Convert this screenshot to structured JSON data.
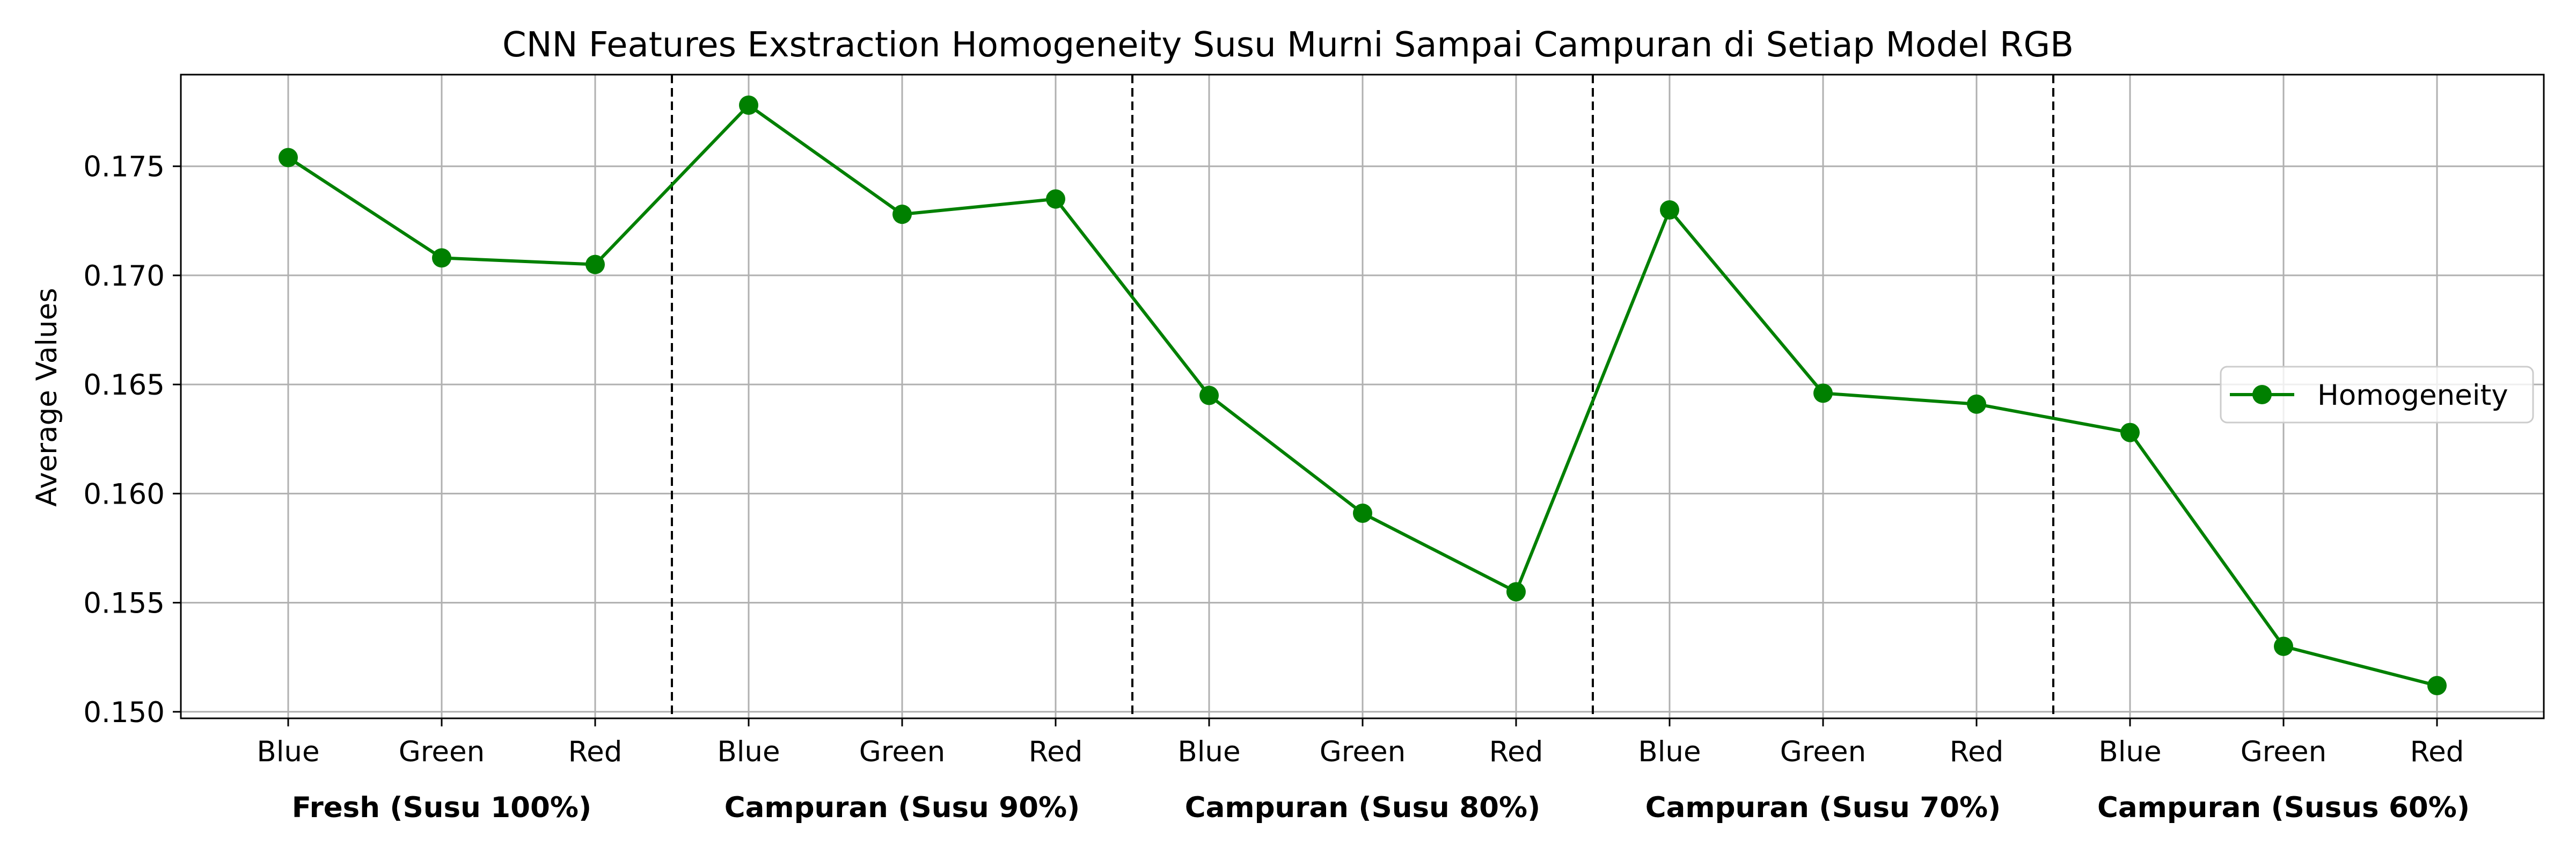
{
  "chart_data": {
    "type": "line",
    "title": "CNN Features Exstraction Homogeneity Susu Murni Sampai Campuran di Setiap Model RGB",
    "xlabel": "",
    "ylabel": "Average Values",
    "x": [
      "Blue",
      "Green",
      "Red",
      "Blue",
      "Green",
      "Red",
      "Blue",
      "Green",
      "Red",
      "Blue",
      "Green",
      "Red",
      "Blue",
      "Green",
      "Red"
    ],
    "groups": [
      "Fresh (Susu 100%)",
      "Campuran (Susu 90%)",
      "Campuran (Susu 80%)",
      "Campuran (Susu 70%)",
      "Campuran (Susus 60%)"
    ],
    "series": [
      {
        "name": "Homogeneity",
        "color": "#008000",
        "values": [
          0.1754,
          0.1708,
          0.1705,
          0.1778,
          0.1728,
          0.1735,
          0.1645,
          0.1591,
          0.1555,
          0.173,
          0.1646,
          0.1641,
          0.1628,
          0.153,
          0.1512
        ]
      }
    ],
    "ylim": [
      0.1497,
      0.1792
    ],
    "yticks": [
      0.15,
      0.155,
      0.16,
      0.165,
      0.17,
      0.175
    ],
    "ytick_labels": [
      "0.150",
      "0.155",
      "0.160",
      "0.165",
      "0.170",
      "0.175"
    ],
    "grid": true,
    "group_separators": "dashed",
    "legend": "center-right"
  }
}
